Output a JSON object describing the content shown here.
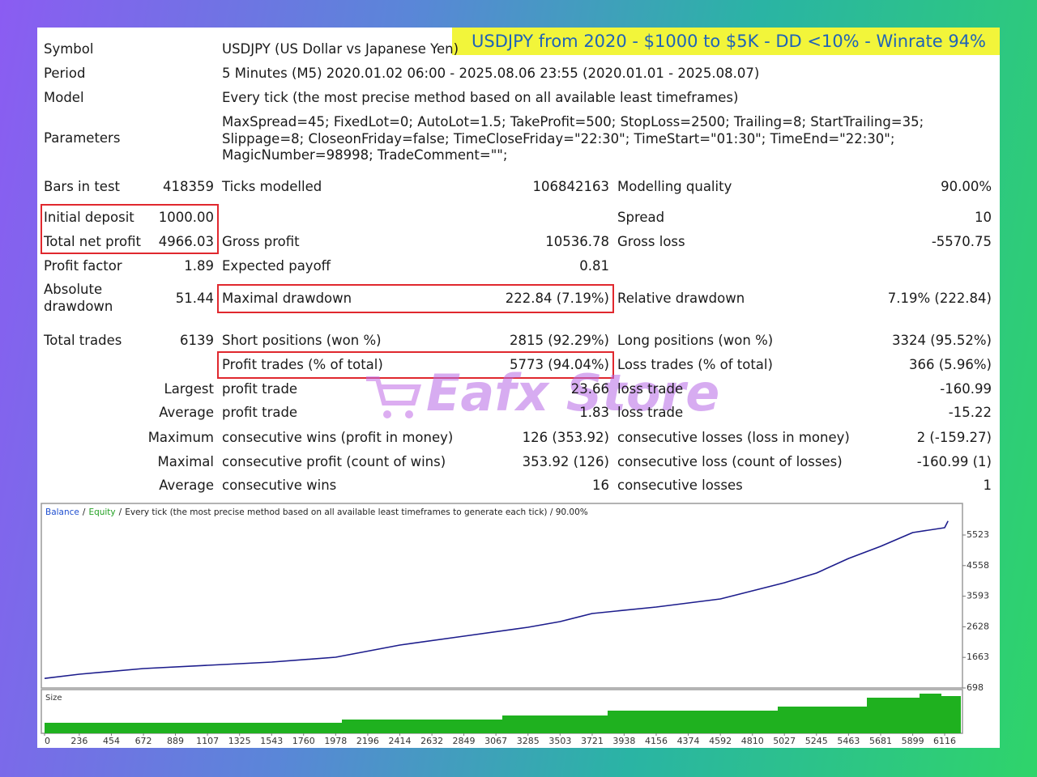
{
  "banner": "USDJPY from 2020 - $1000 to $5K - DD <10% - Winrate 94%",
  "watermark": "Eafx Store",
  "report": {
    "rows": [
      [
        "Symbol",
        "USDJPY (US Dollar vs Japanese Yen)"
      ],
      [
        "Period",
        "5 Minutes (M5) 2020.01.02 06:00 - 2025.08.06 23:55 (2020.01.01 - 2025.08.07)"
      ],
      [
        "Model",
        "Every tick (the most precise method based on all available least timeframes)"
      ],
      [
        "Parameters",
        "MaxSpread=45; FixedLot=0; AutoLot=1.5; TakeProfit=500; StopLoss=2500; Trailing=8; StartTrailing=35; Slippage=8; CloseonFriday=false; TimeCloseFriday=\"22:30\"; TimeStart=\"01:30\"; TimeEnd=\"22:30\"; MagicNumber=98998; TradeComment=\"\";"
      ],
      [
        "Bars in test",
        "418359",
        "Ticks modelled",
        "106842163",
        "Modelling quality",
        "90.00%"
      ],
      [
        "Initial deposit",
        "1000.00",
        "Spread",
        "10"
      ],
      [
        "Total net profit",
        "4966.03",
        "Gross profit",
        "10536.78",
        "Gross loss",
        "-5570.75"
      ],
      [
        "Profit factor",
        "1.89",
        "Expected payoff",
        "0.81"
      ],
      [
        "Absolute drawdown",
        "51.44",
        "Maximal drawdown",
        "222.84 (7.19%)",
        "Relative drawdown",
        "7.19% (222.84)"
      ],
      [
        "Total trades",
        "6139",
        "Short positions (won %)",
        "2815 (92.29%)",
        "Long positions (won %)",
        "3324 (95.52%)"
      ],
      [
        "Profit trades (% of total)",
        "5773 (94.04%)",
        "Loss trades (% of total)",
        "366 (5.96%)"
      ],
      [
        "Largest",
        "profit trade",
        "23.66",
        "loss trade",
        "-160.99"
      ],
      [
        "Average",
        "profit trade",
        "1.83",
        "loss trade",
        "-15.22"
      ],
      [
        "Maximum",
        "consecutive wins (profit in money)",
        "126 (353.92)",
        "consecutive losses (loss in money)",
        "2 (-159.27)"
      ],
      [
        "Maximal",
        "consecutive profit (count of wins)",
        "353.92 (126)",
        "consecutive loss (count of losses)",
        "-160.99 (1)"
      ],
      [
        "Average",
        "consecutive wins",
        "16",
        "consecutive losses",
        "1"
      ]
    ]
  },
  "chart_data": {
    "type": "line",
    "legend": {
      "separator": "/",
      "equity": "Equity",
      "description": "Every tick (the most precise method based on all available least timeframes to generate each tick) / 90.00%"
    },
    "size_label": "Size",
    "x": [
      0,
      236,
      672,
      1107,
      1543,
      1978,
      2414,
      2849,
      3285,
      3503,
      3721,
      4156,
      4592,
      5027,
      5245,
      5463,
      5681,
      5899,
      6116,
      6139
    ],
    "series": [
      {
        "name": "Balance",
        "color": "#1c1c8c",
        "values": [
          1000,
          1132,
          1311,
          1413,
          1515,
          1668,
          2051,
          2332,
          2613,
          2791,
          3047,
          3251,
          3506,
          4017,
          4323,
          4783,
          5166,
          5600,
          5753,
          5966
        ]
      }
    ],
    "legend_colors": {
      "balance": "#1f4fd0",
      "equity": "#22a022"
    },
    "xlim": [
      0,
      6237
    ],
    "ylim": [
      698,
      6519
    ],
    "xticks": [
      0,
      236,
      454,
      672,
      889,
      1107,
      1325,
      1543,
      1760,
      1978,
      2196,
      2414,
      2632,
      2849,
      3067,
      3285,
      3503,
      3721,
      3938,
      4156,
      4374,
      4592,
      4810,
      5027,
      5245,
      5463,
      5681,
      5899,
      6116
    ],
    "yticks": [
      698,
      1663,
      2628,
      3593,
      4558,
      5523
    ]
  }
}
